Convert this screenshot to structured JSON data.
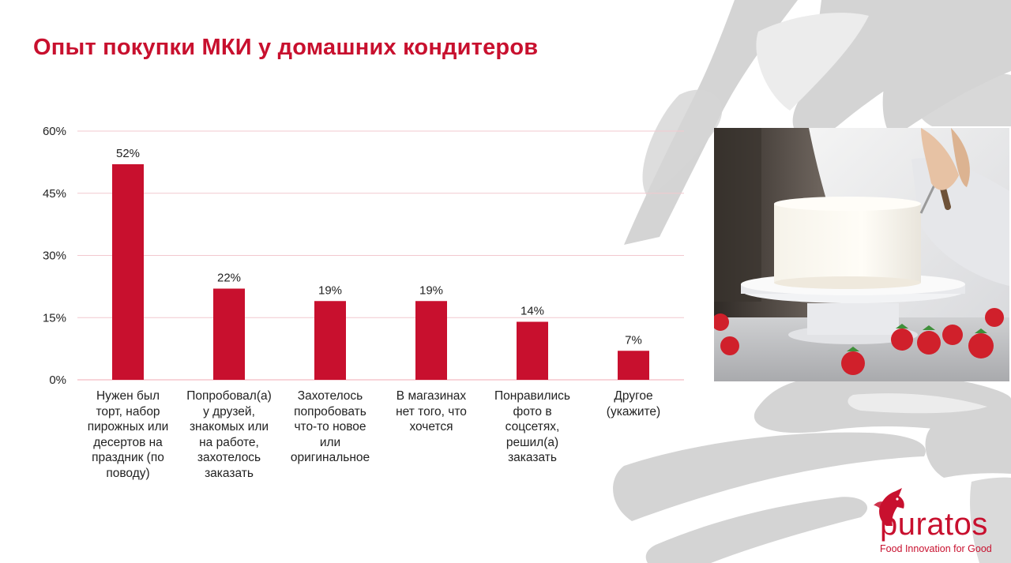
{
  "title": "Опыт покупки МКИ у домашних кондитеров",
  "chart_data": {
    "type": "bar",
    "title": "",
    "xlabel": "",
    "ylabel": "",
    "ylim": [
      0,
      60
    ],
    "yticks": [
      0,
      15,
      30,
      45,
      60
    ],
    "ytick_labels": [
      "0%",
      "15%",
      "30%",
      "45%",
      "60%"
    ],
    "grid": true,
    "categories": [
      "Нужен был торт, набор пирожных или десертов на праздник (по поводу)",
      "Попробовал(а) у друзей, знакомых или на работе, захотелось заказать",
      "Захотелось попробовать что-то новое или оригинальное",
      "В магазинах нет того, что хочется",
      "Понравились фото в соцсетях, решил(а) заказать",
      "Другое (укажите)"
    ],
    "category_lines": [
      [
        "Нужен был",
        "торт, набор",
        "пирожных или",
        "десертов на",
        "праздник (по",
        "поводу)"
      ],
      [
        "Попробовал(а)",
        "у друзей,",
        "знакомых или",
        "на работе,",
        "захотелось",
        "заказать"
      ],
      [
        "Захотелось",
        "попробовать",
        "что-то новое",
        "или",
        "оригинальное"
      ],
      [
        "В магазинах",
        "нет того, что",
        "хочется"
      ],
      [
        "Понравились",
        "фото в",
        "соцсетях,",
        "решил(а)",
        "заказать"
      ],
      [
        "Другое",
        "(укажите)"
      ]
    ],
    "values": [
      52,
      22,
      19,
      19,
      14,
      7
    ],
    "value_labels": [
      "52%",
      "22%",
      "19%",
      "19%",
      "14%",
      "7%"
    ],
    "colors": {
      "bar": "#c8102e",
      "grid": "#f2c9cf",
      "title": "#c8102e"
    }
  },
  "photo": {
    "icon": "cake-decorating-photo"
  },
  "logo": {
    "word": "puratos",
    "tagline": "Food Innovation for Good",
    "icon": "unicorn-icon"
  }
}
